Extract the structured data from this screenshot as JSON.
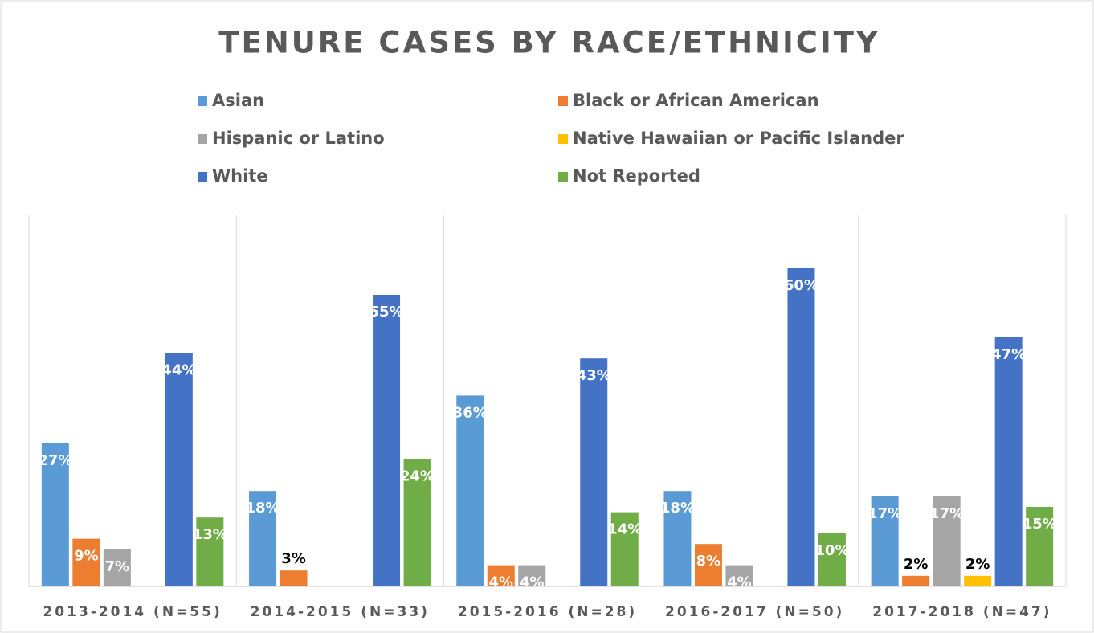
{
  "chart_data": {
    "type": "bar",
    "title": "TENURE CASES BY RACE/ETHNICITY",
    "categories": [
      "2013-2014 (N=55)",
      "2014-2015 (N=33)",
      "2015-2016 (N=28)",
      "2016-2017 (N=50)",
      "2017-2018 (N=47)"
    ],
    "series": [
      {
        "name": "Asian",
        "color": "#5b9bd5",
        "values": [
          27,
          18,
          36,
          18,
          17
        ],
        "value_labels": [
          "27%",
          "18%",
          "36%",
          "18%",
          "17%"
        ]
      },
      {
        "name": "Black or African American",
        "color": "#ed7d31",
        "values": [
          9,
          3,
          4,
          8,
          2
        ],
        "value_labels": [
          "9%",
          "3%",
          "4%",
          "8%",
          "2%"
        ]
      },
      {
        "name": "Hispanic or Latino",
        "color": "#a5a5a5",
        "values": [
          7,
          null,
          4,
          4,
          17
        ],
        "value_labels": [
          "7%",
          null,
          "4%",
          "4%",
          "17%"
        ]
      },
      {
        "name": "Native Hawaiian or Pacific Islander",
        "color": "#ffc000",
        "values": [
          null,
          null,
          null,
          null,
          2
        ],
        "value_labels": [
          null,
          null,
          null,
          null,
          "2%"
        ]
      },
      {
        "name": "White",
        "color": "#4472c4",
        "values": [
          44,
          55,
          43,
          60,
          47
        ],
        "value_labels": [
          "44%",
          "55%",
          "43%",
          "60%",
          "47%"
        ]
      },
      {
        "name": "Not Reported",
        "color": "#70ad47",
        "values": [
          13,
          24,
          14,
          10,
          15
        ],
        "value_labels": [
          "13%",
          "24%",
          "14%",
          "10%",
          "15%"
        ]
      }
    ],
    "ylim": [
      0,
      70
    ],
    "legend": "top"
  }
}
